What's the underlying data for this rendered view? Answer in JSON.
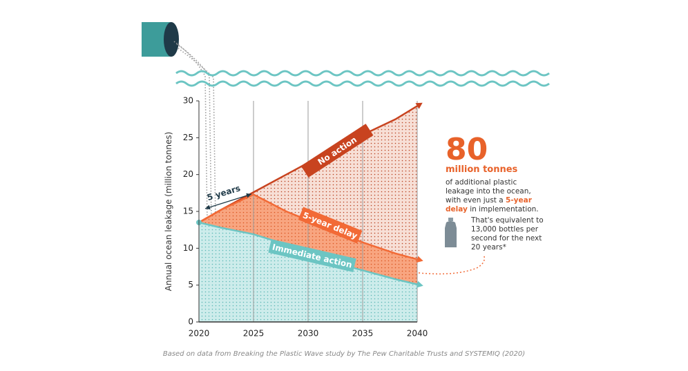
{
  "chart_data": {
    "type": "area",
    "y_label": "Annual ocean leakage (million tonnes)",
    "x": [
      2020,
      2022,
      2025,
      2028,
      2030,
      2033,
      2035,
      2038,
      2040
    ],
    "series": [
      {
        "name": "No action",
        "color": "#c8431f",
        "values": [
          13.5,
          15.2,
          17.6,
          20.0,
          21.6,
          23.9,
          25.4,
          27.5,
          29.3
        ]
      },
      {
        "name": "5-year delay",
        "color": "#f26a36",
        "values": [
          13.5,
          15.2,
          17.3,
          15.0,
          13.8,
          12.0,
          10.8,
          9.3,
          8.5
        ]
      },
      {
        "name": "Immediate action",
        "color": "#6cc5c3",
        "values": [
          13.5,
          12.8,
          11.9,
          10.5,
          9.3,
          7.8,
          7.0,
          5.8,
          5.1
        ]
      }
    ],
    "xlim": [
      2020,
      2040
    ],
    "xticks": [
      2020,
      2025,
      2030,
      2035,
      2040
    ],
    "ylim": [
      0,
      30
    ],
    "yticks": [
      0,
      5,
      10,
      15,
      20,
      25,
      30
    ],
    "grid": true,
    "annotations": {
      "delay_span": "5 years",
      "total": "80",
      "total_unit": "million tonnes",
      "description_start": "of additional plastic leakage into the ocean, with even just a",
      "description_highlight": "5-year delay",
      "description_end": "in implementation.",
      "equivalent": "That's equivalent to 13,000 bottles per second for the next 20 years*"
    },
    "source": "Based on data from Breaking the Plastic Wave study by The Pew Charitable Trusts and SYSTEMIQ (2020)"
  }
}
